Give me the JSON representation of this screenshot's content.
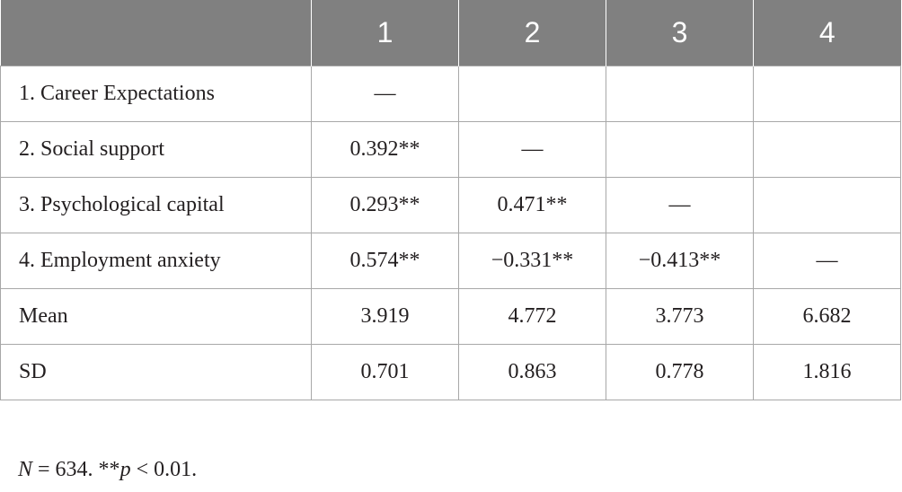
{
  "table": {
    "headers": [
      "",
      "1",
      "2",
      "3",
      "4"
    ],
    "rows": [
      {
        "label": "1. Career Expectations",
        "cells": [
          "—",
          "",
          "",
          ""
        ]
      },
      {
        "label": "2. Social support",
        "cells": [
          "0.392**",
          "—",
          "",
          ""
        ]
      },
      {
        "label": "3. Psychological capital",
        "cells": [
          "0.293**",
          "0.471**",
          "—",
          ""
        ]
      },
      {
        "label": "4. Employment anxiety",
        "cells": [
          "0.574**",
          "−0.331**",
          "−0.413**",
          "—"
        ]
      },
      {
        "label": "Mean",
        "cells": [
          "3.919",
          "4.772",
          "3.773",
          "6.682"
        ]
      },
      {
        "label": "SD",
        "cells": [
          "0.701",
          "0.863",
          "0.778",
          "1.816"
        ]
      }
    ]
  },
  "note": {
    "n_symbol": "N",
    "n_text": " = 634. **",
    "p_symbol": "p",
    "p_text": " < 0.01."
  },
  "colors": {
    "header_bg": "#808080",
    "header_text": "#ffffff",
    "grid": "#a8a8a8",
    "text": "#231f20"
  }
}
